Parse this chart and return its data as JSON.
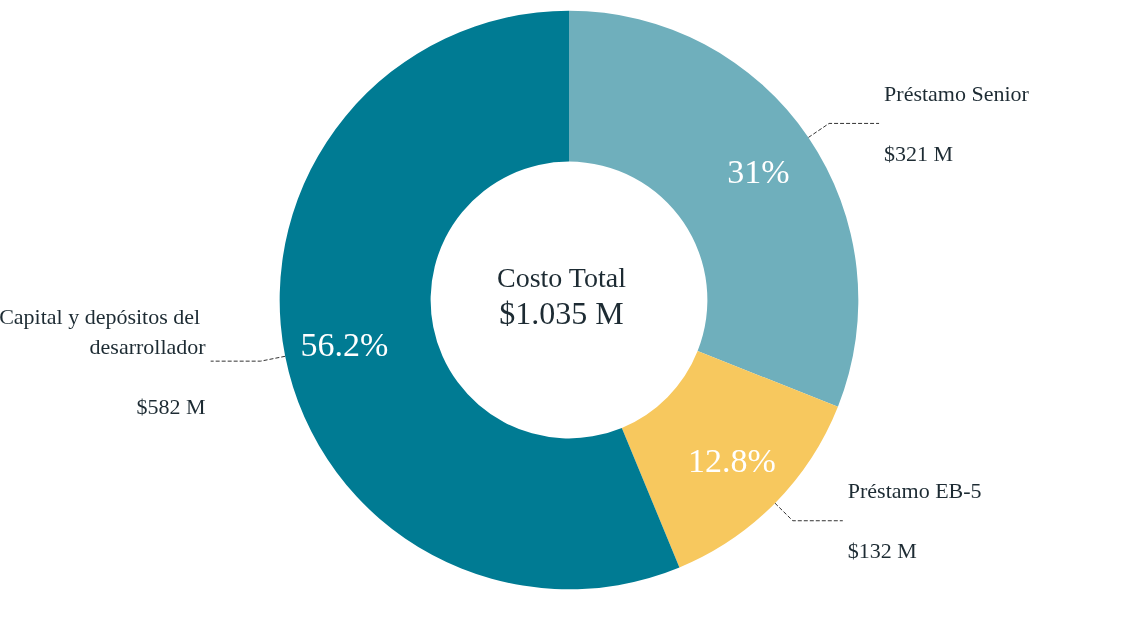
{
  "chart_data": {
    "type": "donut",
    "title": "Costo Total",
    "subtitle": "$1.035 M",
    "categories": [
      "Préstamo Senior",
      "Préstamo EB-5",
      "Capital y depósitos del desarrollador"
    ],
    "values": [
      321,
      132,
      582
    ],
    "value_labels": [
      "$321 M",
      "$132 M",
      "$582 M"
    ],
    "colors": [
      "#6fafbc",
      "#f7c85e",
      "#007b93"
    ],
    "annotations": [
      "31%",
      "12.8%",
      "56.2%"
    ],
    "legend": false
  }
}
